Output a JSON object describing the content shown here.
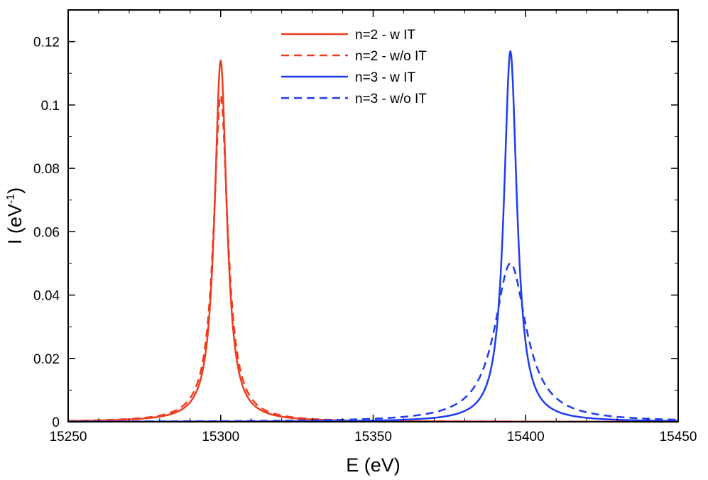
{
  "chart_data": {
    "type": "line",
    "title": "",
    "xlabel": "E (eV)",
    "ylabel_main": "I (eV",
    "ylabel_sup": "-1",
    "ylabel_close": ")",
    "xlim": [
      15250,
      15450
    ],
    "ylim": [
      0,
      0.13
    ],
    "xticks": [
      15250,
      15300,
      15350,
      15400,
      15450
    ],
    "xtick_labels": [
      "15250",
      "15300",
      "15350",
      "15400",
      "15450"
    ],
    "yticks": [
      0,
      0.02,
      0.04,
      0.06,
      0.08,
      0.1,
      0.12
    ],
    "ytick_labels": [
      "0",
      "0.02",
      "0.04",
      "0.06",
      "0.08",
      "0.1",
      "0.12"
    ],
    "x_minor_step": 10,
    "y_minor_step": 0.01,
    "grid": false,
    "legend_position": "top-center",
    "series": [
      {
        "name": "n=2 - w IT",
        "color": "#f03c1e",
        "dash": "solid",
        "center": 15300,
        "gamma": 2.4,
        "peak": 0.114
      },
      {
        "name": "n=2 - w/o IT",
        "color": "#f03c1e",
        "dash": "dashed",
        "center": 15300,
        "gamma": 2.8,
        "peak": 0.103
      },
      {
        "name": "n=3 - w IT",
        "color": "#1e3cf0",
        "dash": "solid",
        "center": 15395,
        "gamma": 2.6,
        "peak": 0.117
      },
      {
        "name": "n=3 - w/o IT",
        "color": "#1e3cf0",
        "dash": "dashed",
        "center": 15395,
        "gamma": 6.3,
        "peak": 0.05
      }
    ]
  }
}
